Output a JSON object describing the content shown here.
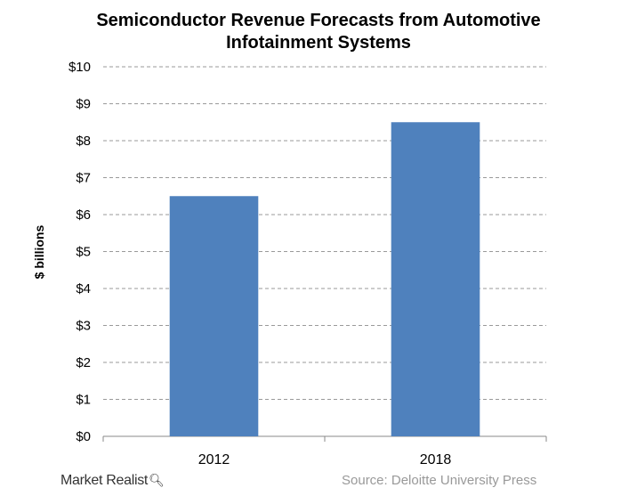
{
  "chart_data": {
    "type": "bar",
    "title_line1": "Semiconductor Revenue Forecasts from Automotive",
    "title_line2": "Infotainment Systems",
    "ylabel": "$ billions",
    "xlabel": "",
    "categories": [
      "2012",
      "2018"
    ],
    "values": [
      6.5,
      8.5
    ],
    "ylim": [
      0,
      10
    ],
    "yticks": [
      0,
      1,
      2,
      3,
      4,
      5,
      6,
      7,
      8,
      9,
      10
    ],
    "ytick_labels": [
      "$0",
      "$1",
      "$2",
      "$3",
      "$4",
      "$5",
      "$6",
      "$7",
      "$8",
      "$9",
      "$10"
    ],
    "grid": true,
    "bar_color": "#4f81bd",
    "grid_color": "#9a9a9a"
  },
  "branding": {
    "logo": "Market Realist",
    "logo_icon": "magnifier-icon"
  },
  "source": "Source:  Deloitte University Press"
}
